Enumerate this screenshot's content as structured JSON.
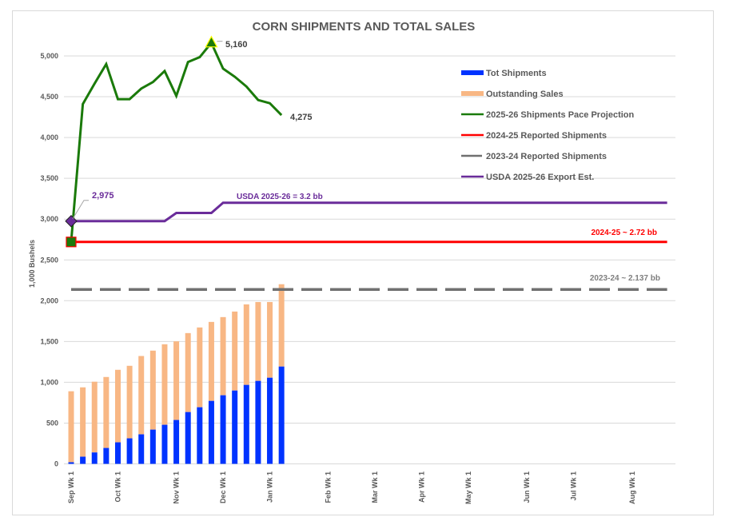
{
  "chart_data": {
    "type": "bar+line",
    "title": "CORN SHIPMENTS AND TOTAL SALES",
    "xlabel": "",
    "ylabel": "1,000 Bushels",
    "ylim": [
      0,
      5250
    ],
    "yticks": [
      0,
      500,
      1000,
      1500,
      2000,
      2500,
      3000,
      3500,
      4000,
      4500,
      5000
    ],
    "ytick_labels": [
      "0",
      "500",
      "1,000",
      "1,500",
      "2,000",
      "2,500",
      "3,000",
      "3,500",
      "4,000",
      "4,500",
      "5,000"
    ],
    "grid": true,
    "num_weeks": 52,
    "x_tick_labels": [
      {
        "week": 0,
        "label": "Sep Wk 1"
      },
      {
        "week": 4,
        "label": "Oct Wk 1"
      },
      {
        "week": 9,
        "label": "Nov Wk 1"
      },
      {
        "week": 13,
        "label": "Dec Wk 1"
      },
      {
        "week": 17,
        "label": "Jan Wk 1"
      },
      {
        "week": 22,
        "label": "Feb Wk 1"
      },
      {
        "week": 26,
        "label": "Mar Wk 1"
      },
      {
        "week": 30,
        "label": "Apr Wk 1"
      },
      {
        "week": 34,
        "label": "May Wk 1"
      },
      {
        "week": 39,
        "label": "Jun Wk 1"
      },
      {
        "week": 43,
        "label": "Jul Wk 1"
      },
      {
        "week": 48,
        "label": "Aug Wk 1"
      }
    ],
    "series": [
      {
        "name": "Tot Shipments",
        "kind": "stacked-bar",
        "color": "#0033ff",
        "values": [
          20,
          88,
          140,
          195,
          264,
          313,
          362,
          420,
          479,
          538,
          635,
          694,
          772,
          841,
          899,
          968,
          1017,
          1056,
          1193
        ]
      },
      {
        "name": "Outstanding Sales",
        "kind": "stacked-bar",
        "color": "#f8b784",
        "values": [
          870,
          850,
          867,
          870,
          889,
          889,
          960,
          968,
          987,
          964,
          968,
          978,
          968,
          958,
          968,
          987,
          967,
          928,
          1009
        ]
      },
      {
        "name": "2025-26 Shipments Pace Projection",
        "kind": "line",
        "color": "#1a7a0a",
        "values": [
          2720,
          4410,
          4660,
          4900,
          4470,
          4470,
          4600,
          4680,
          4815,
          4510,
          4925,
          4985,
          5160,
          4845,
          4745,
          4625,
          4460,
          4420,
          4275
        ]
      },
      {
        "name": "2024-25 Reported Shipments",
        "kind": "horizontal-line",
        "color": "#ff0000",
        "value": 2720,
        "from_week": 0,
        "to_week": 51
      },
      {
        "name": "2023-24 Reported Shipments",
        "kind": "horizontal-dashed-line",
        "color": "#707070",
        "value": 2137,
        "from_week": 0,
        "to_week": 51
      },
      {
        "name": "USDA 2025-26 Export Est.",
        "kind": "step-line",
        "color": "#6a2c9a",
        "points": [
          {
            "week": 0,
            "value": 2975
          },
          {
            "week": 8,
            "value": 2975
          },
          {
            "week": 9,
            "value": 3075
          },
          {
            "week": 12,
            "value": 3075
          },
          {
            "week": 13,
            "value": 3200
          },
          {
            "week": 51,
            "value": 3200
          }
        ]
      }
    ],
    "legend": {
      "position": "top-right",
      "entries": [
        {
          "label": "Tot Shipments",
          "color": "#0033ff",
          "style": "box"
        },
        {
          "label": "Outstanding Sales",
          "color": "#f8b784",
          "style": "box"
        },
        {
          "label": "2025-26 Shipments Pace Projection",
          "color": "#1a7a0a",
          "style": "line"
        },
        {
          "label": "2024-25 Reported Shipments",
          "color": "#ff0000",
          "style": "line"
        },
        {
          "label": "2023-24 Reported Shipments",
          "color": "#707070",
          "style": "line"
        },
        {
          "label": "USDA 2025-26 Export Est.",
          "color": "#6a2c9a",
          "style": "line"
        }
      ]
    },
    "annotations": {
      "peak_label": "5,160",
      "last_label": "4,275",
      "usda_start_label": "2,975",
      "usda_label": "USDA 2025-26 = 3.2 bb",
      "red_label": "2024-25 ~ 2.72 bb",
      "gray_label": "2023-24 ~ 2.137 bb"
    }
  }
}
